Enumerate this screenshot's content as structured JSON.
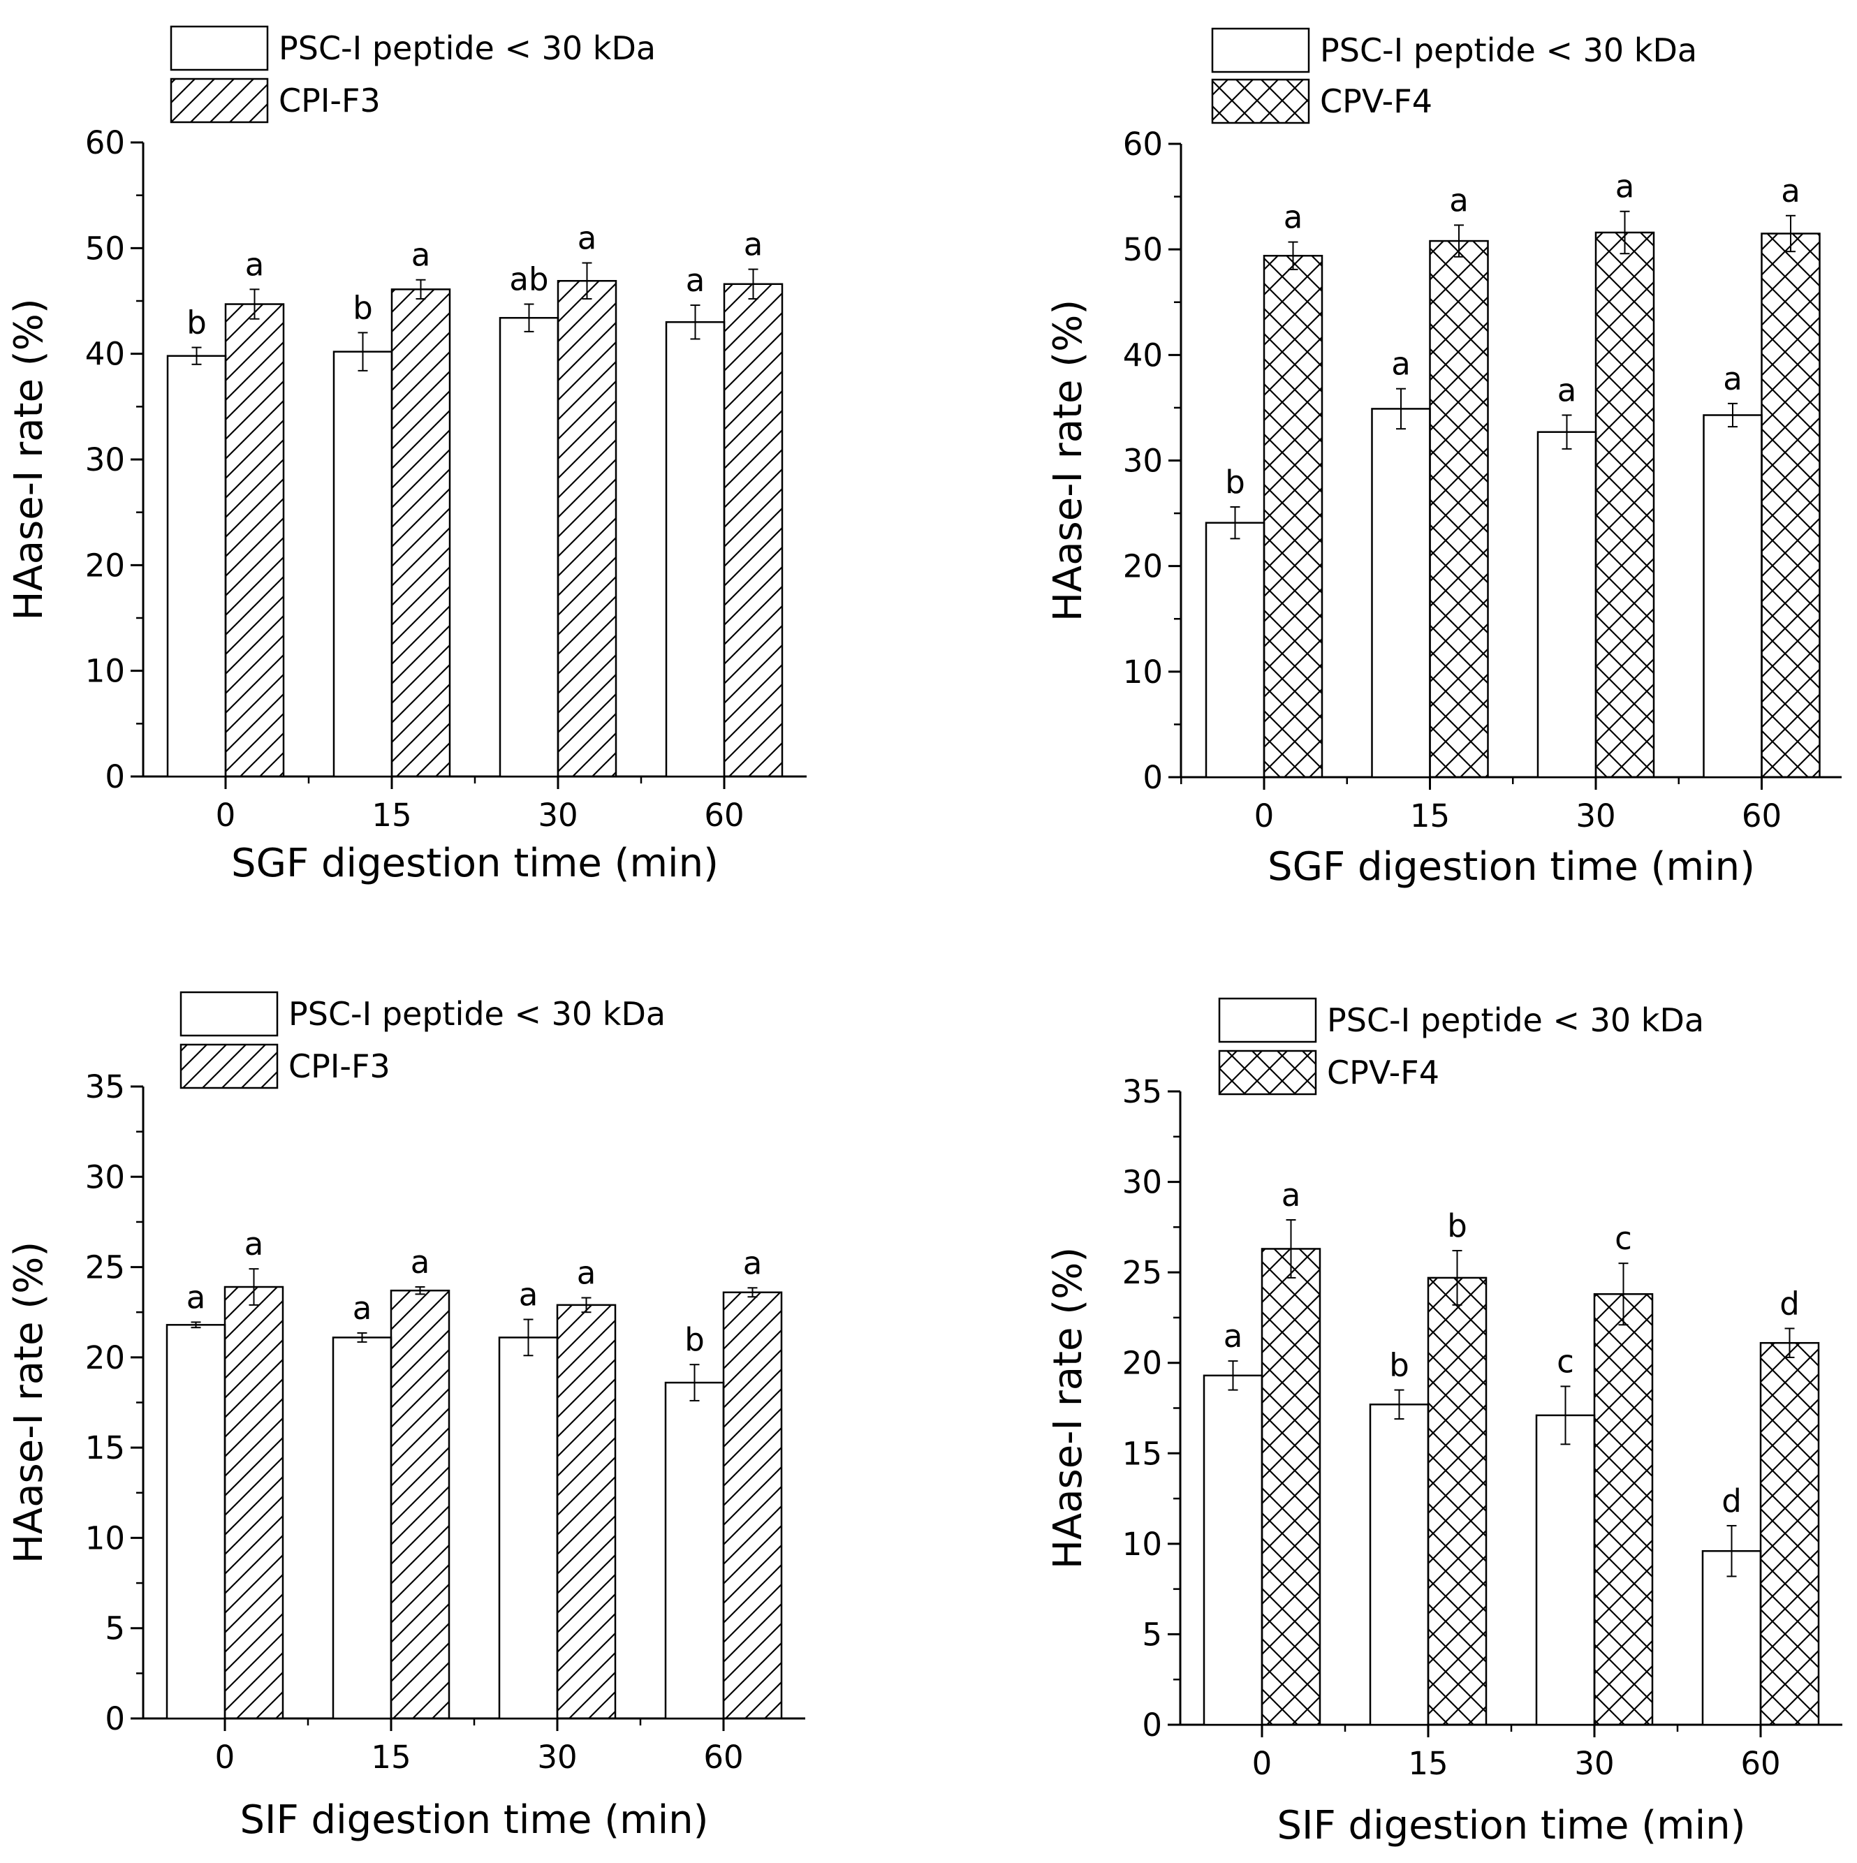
{
  "chart_data": [
    {
      "type": "bar",
      "categories": [
        "0",
        "15",
        "30",
        "60"
      ],
      "xlabel": "SGF digestion time (min)",
      "ylabel": "HAase-I rate (%)",
      "ylim": [
        0,
        60
      ],
      "yticks": [
        "0",
        "10",
        "20",
        "30",
        "40",
        "50",
        "60"
      ],
      "legend_position": "top-left",
      "series": [
        {
          "name": "PSC-I peptide < 30 kDa",
          "pattern": "none",
          "values": [
            39.8,
            40.2,
            43.4,
            43.0
          ],
          "errors": [
            0.8,
            1.8,
            1.3,
            1.6
          ],
          "labels": [
            "b",
            "b",
            "ab",
            "a"
          ]
        },
        {
          "name": "CPI-F3",
          "pattern": "diagonal",
          "values": [
            44.7,
            46.1,
            46.9,
            46.6
          ],
          "errors": [
            1.4,
            0.9,
            1.7,
            1.4
          ],
          "labels": [
            "a",
            "a",
            "a",
            "a"
          ]
        }
      ]
    },
    {
      "type": "bar",
      "categories": [
        "0",
        "15",
        "30",
        "60"
      ],
      "xlabel": "SGF digestion time (min)",
      "ylabel": "HAase-I rate (%)",
      "ylim": [
        0,
        60
      ],
      "yticks": [
        "0",
        "10",
        "20",
        "30",
        "40",
        "50",
        "60"
      ],
      "legend_position": "top-left",
      "series": [
        {
          "name": "PSC-I peptide < 30 kDa",
          "pattern": "none",
          "values": [
            24.1,
            34.9,
            32.7,
            34.3
          ],
          "errors": [
            1.5,
            1.9,
            1.6,
            1.1
          ],
          "labels": [
            "b",
            "a",
            "a",
            "a"
          ]
        },
        {
          "name": "CPV-F4",
          "pattern": "crosshatch",
          "values": [
            49.4,
            50.8,
            51.6,
            51.5
          ],
          "errors": [
            1.3,
            1.5,
            2.0,
            1.7
          ],
          "labels": [
            "a",
            "a",
            "a",
            "a"
          ]
        }
      ]
    },
    {
      "type": "bar",
      "categories": [
        "0",
        "15",
        "30",
        "60"
      ],
      "xlabel": "SIF digestion time (min)",
      "ylabel": "HAase-I rate (%)",
      "ylim": [
        0,
        35
      ],
      "yticks": [
        "0",
        "5",
        "10",
        "15",
        "20",
        "25",
        "30",
        "35"
      ],
      "legend_position": "top-left",
      "series": [
        {
          "name": "PSC-I peptide < 30 kDa",
          "pattern": "none",
          "values": [
            21.8,
            21.1,
            21.1,
            18.6
          ],
          "errors": [
            0.15,
            0.25,
            1.0,
            1.0
          ],
          "labels": [
            "a",
            "a",
            "a",
            "b"
          ]
        },
        {
          "name": "CPI-F3",
          "pattern": "diagonal",
          "values": [
            23.9,
            23.7,
            22.9,
            23.6
          ],
          "errors": [
            1.0,
            0.2,
            0.4,
            0.25
          ],
          "labels": [
            "a",
            "a",
            "a",
            "a"
          ]
        }
      ]
    },
    {
      "type": "bar",
      "categories": [
        "0",
        "15",
        "30",
        "60"
      ],
      "xlabel": "SIF digestion time (min)",
      "ylabel": "HAase-I rate (%)",
      "ylim": [
        0,
        35
      ],
      "yticks": [
        "0",
        "5",
        "10",
        "15",
        "20",
        "25",
        "30",
        "35"
      ],
      "legend_position": "top-left",
      "series": [
        {
          "name": "PSC-I peptide < 30 kDa",
          "pattern": "none",
          "values": [
            19.3,
            17.7,
            17.1,
            9.6
          ],
          "errors": [
            0.8,
            0.8,
            1.6,
            1.4
          ],
          "labels": [
            "a",
            "b",
            "c",
            "d"
          ]
        },
        {
          "name": "CPV-F4",
          "pattern": "crosshatch",
          "values": [
            26.3,
            24.7,
            23.8,
            21.1
          ],
          "errors": [
            1.6,
            1.5,
            1.7,
            0.8
          ],
          "labels": [
            "a",
            "b",
            "c",
            "d"
          ]
        }
      ]
    }
  ]
}
